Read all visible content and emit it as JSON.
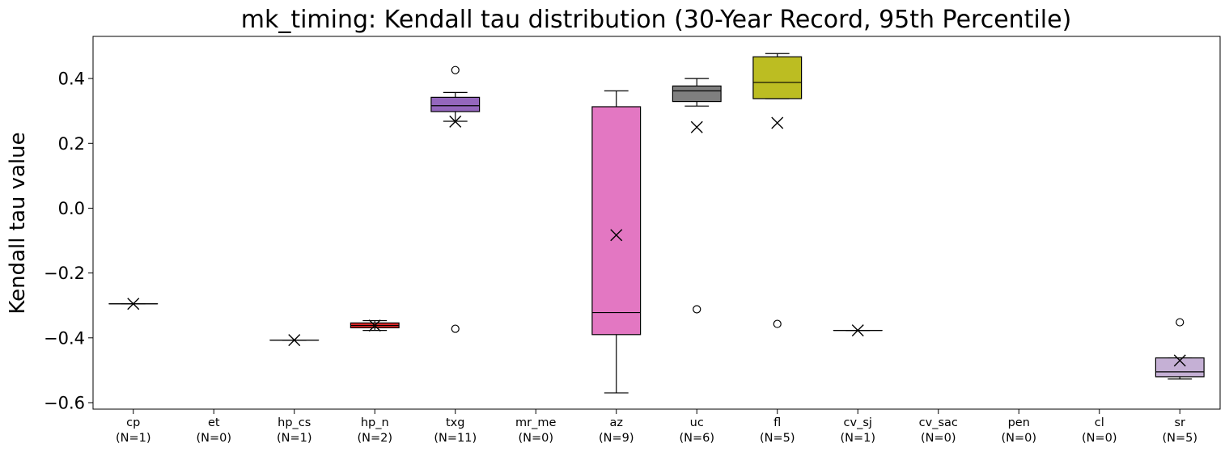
{
  "chart_data": {
    "type": "box",
    "title": "mk_timing: Kendall tau distribution (30-Year Record, 95th Percentile)",
    "xlabel": "",
    "ylabel": "Kendall tau value",
    "ylim": [
      -0.62,
      0.53
    ],
    "yticks": [
      -0.6,
      -0.4,
      -0.2,
      0.0,
      0.2,
      0.4
    ],
    "ytick_labels": [
      "−0.6",
      "−0.4",
      "−0.2",
      "0.0",
      "0.2",
      "0.4"
    ],
    "grid": false,
    "legend": "none",
    "mean_marker": "x",
    "categories": [
      {
        "name": "cp",
        "label": "cp",
        "n_label": "(N=1)",
        "color": "#1f77b4",
        "box": {
          "whislo": -0.295,
          "q1": -0.295,
          "med": -0.295,
          "q3": -0.295,
          "whishi": -0.295
        },
        "mean": -0.295,
        "fliers": []
      },
      {
        "name": "et",
        "label": "et",
        "n_label": "(N=0)",
        "color": "#ff7f0e",
        "box": null,
        "mean": null,
        "fliers": []
      },
      {
        "name": "hp_cs",
        "label": "hp_cs",
        "n_label": "(N=1)",
        "color": "#2ca02c",
        "box": {
          "whislo": -0.407,
          "q1": -0.407,
          "med": -0.407,
          "q3": -0.407,
          "whishi": -0.407
        },
        "mean": -0.407,
        "fliers": []
      },
      {
        "name": "hp_n",
        "label": "hp_n",
        "n_label": "(N=2)",
        "color": "#d62728",
        "box": {
          "whislo": -0.377,
          "q1": -0.369,
          "med": -0.362,
          "q3": -0.354,
          "whishi": -0.347
        },
        "mean": -0.362,
        "fliers": []
      },
      {
        "name": "txg",
        "label": "txg",
        "n_label": "(N=11)",
        "color": "#9467bd",
        "box": {
          "whislo": 0.268,
          "q1": 0.298,
          "med": 0.316,
          "q3": 0.342,
          "whishi": 0.357
        },
        "mean": 0.267,
        "fliers": [
          0.426,
          -0.372
        ]
      },
      {
        "name": "mr_me",
        "label": "mr_me",
        "n_label": "(N=0)",
        "color": "#8c564b",
        "box": null,
        "mean": null,
        "fliers": []
      },
      {
        "name": "az",
        "label": "az",
        "n_label": "(N=9)",
        "color": "#e377c2",
        "box": {
          "whislo": -0.57,
          "q1": -0.39,
          "med": -0.322,
          "q3": 0.313,
          "whishi": 0.362
        },
        "mean": -0.083,
        "fliers": []
      },
      {
        "name": "uc",
        "label": "uc",
        "n_label": "(N=6)",
        "color": "#7f7f7f",
        "box": {
          "whislo": 0.315,
          "q1": 0.329,
          "med": 0.362,
          "q3": 0.377,
          "whishi": 0.4
        },
        "mean": 0.25,
        "fliers": [
          -0.312
        ]
      },
      {
        "name": "fl",
        "label": "fl",
        "n_label": "(N=5)",
        "color": "#bcbd22",
        "box": {
          "whislo": 0.338,
          "q1": 0.338,
          "med": 0.388,
          "q3": 0.467,
          "whishi": 0.477
        },
        "mean": 0.263,
        "fliers": [
          -0.357
        ]
      },
      {
        "name": "cv_sj",
        "label": "cv_sj",
        "n_label": "(N=1)",
        "color": "#17becf",
        "box": {
          "whislo": -0.377,
          "q1": -0.377,
          "med": -0.377,
          "q3": -0.377,
          "whishi": -0.377
        },
        "mean": -0.377,
        "fliers": []
      },
      {
        "name": "cv_sac",
        "label": "cv_sac",
        "n_label": "(N=0)",
        "color": "#aec7e8",
        "box": null,
        "mean": null,
        "fliers": []
      },
      {
        "name": "pen",
        "label": "pen",
        "n_label": "(N=0)",
        "color": "#ffbb78",
        "box": null,
        "mean": null,
        "fliers": []
      },
      {
        "name": "cl",
        "label": "cl",
        "n_label": "(N=0)",
        "color": "#98df8a",
        "box": null,
        "mean": null,
        "fliers": []
      },
      {
        "name": "sr",
        "label": "sr",
        "n_label": "(N=5)",
        "color": "#c5b0d5",
        "box": {
          "whislo": -0.527,
          "q1": -0.52,
          "med": -0.505,
          "q3": -0.462,
          "whishi": -0.462
        },
        "mean": -0.47,
        "fliers": [
          -0.352
        ]
      }
    ]
  }
}
